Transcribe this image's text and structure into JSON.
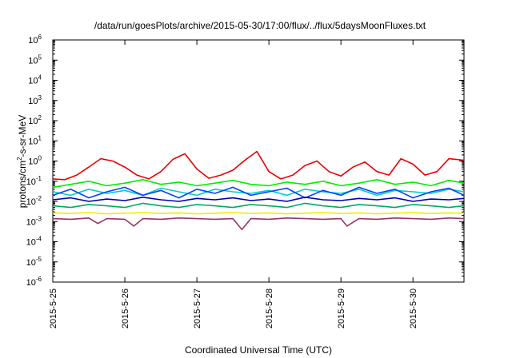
{
  "chart_data": {
    "type": "line",
    "title": "/data/run/goesPlots/archive/2015-05-30/17:00/flux/../flux/5daysMoonFluxes.txt",
    "xlabel": "Coordinated Universal Time (UTC)",
    "ylabel": {
      "before": "protons/cm",
      "sup": "2",
      "after": "-s-sr-MeV"
    },
    "y_scale": "log",
    "ylim": [
      1e-06,
      1000000.0
    ],
    "y_ticks": [
      {
        "base": "10",
        "exp": "-6",
        "value": 1e-06
      },
      {
        "base": "10",
        "exp": "-5",
        "value": 1e-05
      },
      {
        "base": "10",
        "exp": "-4",
        "value": 0.0001
      },
      {
        "base": "10",
        "exp": "-3",
        "value": 0.001
      },
      {
        "base": "10",
        "exp": "-2",
        "value": 0.01
      },
      {
        "base": "10",
        "exp": "-1",
        "value": 0.1
      },
      {
        "base": "10",
        "exp": "0",
        "value": 1
      },
      {
        "base": "10",
        "exp": "1",
        "value": 10
      },
      {
        "base": "10",
        "exp": "2",
        "value": 100
      },
      {
        "base": "10",
        "exp": "3",
        "value": 1000
      },
      {
        "base": "10",
        "exp": "4",
        "value": 10000
      },
      {
        "base": "10",
        "exp": "5",
        "value": 100000
      },
      {
        "base": "10",
        "exp": "6",
        "value": 1000000
      }
    ],
    "xlim": [
      "2015-05-25T00:00",
      "2015-05-30T17:00"
    ],
    "x_ticks": [
      {
        "label": "2015-5-25",
        "value": "2015-05-25T00:00"
      },
      {
        "label": "2015-5-26",
        "value": "2015-05-26T00:00"
      },
      {
        "label": "2015-5-27",
        "value": "2015-05-27T00:00"
      },
      {
        "label": "2015-5-28",
        "value": "2015-05-28T00:00"
      },
      {
        "label": "2015-5-29",
        "value": "2015-05-29T00:00"
      },
      {
        "label": "2015-5-30",
        "value": "2015-05-30T00:00"
      }
    ],
    "grid": false,
    "legend": "none",
    "series": [
      {
        "color": "#ee0000",
        "x": [
          "2015-05-25T00:00",
          "2015-05-25T04:00",
          "2015-05-25T08:00",
          "2015-05-25T12:00",
          "2015-05-25T16:00",
          "2015-05-25T20:00",
          "2015-05-26T00:00",
          "2015-05-26T04:00",
          "2015-05-26T08:00",
          "2015-05-26T12:00",
          "2015-05-26T16:00",
          "2015-05-26T20:00",
          "2015-05-27T00:00",
          "2015-05-27T04:00",
          "2015-05-27T08:00",
          "2015-05-27T12:00",
          "2015-05-27T16:00",
          "2015-05-27T20:00",
          "2015-05-28T00:00",
          "2015-05-28T04:00",
          "2015-05-28T08:00",
          "2015-05-28T12:00",
          "2015-05-28T16:00",
          "2015-05-28T20:00",
          "2015-05-29T00:00",
          "2015-05-29T04:00",
          "2015-05-29T08:00",
          "2015-05-29T12:00",
          "2015-05-29T16:00",
          "2015-05-29T20:00",
          "2015-05-30T00:00",
          "2015-05-30T04:00",
          "2015-05-30T08:00",
          "2015-05-30T12:00",
          "2015-05-30T17:00"
        ],
        "y": [
          0.13,
          0.12,
          0.2,
          0.5,
          1.3,
          1.0,
          0.5,
          0.2,
          0.13,
          0.3,
          1.2,
          2.3,
          0.4,
          0.14,
          0.2,
          0.35,
          1.1,
          3.0,
          0.3,
          0.13,
          0.2,
          0.6,
          1.0,
          0.3,
          0.18,
          0.5,
          0.9,
          0.3,
          0.2,
          1.3,
          0.7,
          0.2,
          0.3,
          1.3,
          1.1
        ]
      },
      {
        "color": "#00ee00",
        "x": [
          "2015-05-25T00:00",
          "2015-05-25T06:00",
          "2015-05-25T12:00",
          "2015-05-25T18:00",
          "2015-05-26T00:00",
          "2015-05-26T06:00",
          "2015-05-26T12:00",
          "2015-05-26T18:00",
          "2015-05-27T00:00",
          "2015-05-27T06:00",
          "2015-05-27T12:00",
          "2015-05-27T18:00",
          "2015-05-28T00:00",
          "2015-05-28T06:00",
          "2015-05-28T12:00",
          "2015-05-28T18:00",
          "2015-05-29T00:00",
          "2015-05-29T06:00",
          "2015-05-29T12:00",
          "2015-05-29T18:00",
          "2015-05-30T00:00",
          "2015-05-30T06:00",
          "2015-05-30T12:00",
          "2015-05-30T17:00"
        ],
        "y": [
          0.05,
          0.07,
          0.1,
          0.06,
          0.08,
          0.12,
          0.07,
          0.09,
          0.06,
          0.08,
          0.11,
          0.07,
          0.06,
          0.09,
          0.07,
          0.1,
          0.06,
          0.08,
          0.12,
          0.07,
          0.09,
          0.06,
          0.11,
          0.08
        ]
      },
      {
        "color": "#00cccc",
        "x": [
          "2015-05-25T00:00",
          "2015-05-25T06:00",
          "2015-05-25T12:00",
          "2015-05-25T18:00",
          "2015-05-26T00:00",
          "2015-05-26T06:00",
          "2015-05-26T12:00",
          "2015-05-26T18:00",
          "2015-05-27T00:00",
          "2015-05-27T06:00",
          "2015-05-27T12:00",
          "2015-05-27T18:00",
          "2015-05-28T00:00",
          "2015-05-28T06:00",
          "2015-05-28T12:00",
          "2015-05-28T18:00",
          "2015-05-29T00:00",
          "2015-05-29T06:00",
          "2015-05-29T12:00",
          "2015-05-29T18:00",
          "2015-05-30T00:00",
          "2015-05-30T06:00",
          "2015-05-30T12:00",
          "2015-05-30T17:00"
        ],
        "y": [
          0.03,
          0.02,
          0.04,
          0.025,
          0.035,
          0.02,
          0.045,
          0.03,
          0.02,
          0.04,
          0.03,
          0.025,
          0.035,
          0.02,
          0.04,
          0.03,
          0.025,
          0.04,
          0.02,
          0.035,
          0.03,
          0.025,
          0.04,
          0.03
        ]
      },
      {
        "color": "#0044ff",
        "x": [
          "2015-05-25T00:00",
          "2015-05-25T06:00",
          "2015-05-25T12:00",
          "2015-05-25T18:00",
          "2015-05-26T00:00",
          "2015-05-26T06:00",
          "2015-05-26T12:00",
          "2015-05-26T18:00",
          "2015-05-27T00:00",
          "2015-05-27T06:00",
          "2015-05-27T12:00",
          "2015-05-27T18:00",
          "2015-05-28T00:00",
          "2015-05-28T06:00",
          "2015-05-28T12:00",
          "2015-05-28T18:00",
          "2015-05-29T00:00",
          "2015-05-29T06:00",
          "2015-05-29T12:00",
          "2015-05-29T18:00",
          "2015-05-30T00:00",
          "2015-05-30T06:00",
          "2015-05-30T12:00",
          "2015-05-30T17:00"
        ],
        "y": [
          0.02,
          0.04,
          0.015,
          0.03,
          0.05,
          0.02,
          0.035,
          0.015,
          0.04,
          0.025,
          0.05,
          0.02,
          0.03,
          0.045,
          0.015,
          0.035,
          0.02,
          0.05,
          0.025,
          0.04,
          0.015,
          0.03,
          0.045,
          0.02
        ]
      },
      {
        "color": "#0000aa",
        "x": [
          "2015-05-25T00:00",
          "2015-05-25T06:00",
          "2015-05-25T12:00",
          "2015-05-25T18:00",
          "2015-05-26T00:00",
          "2015-05-26T06:00",
          "2015-05-26T12:00",
          "2015-05-26T18:00",
          "2015-05-27T00:00",
          "2015-05-27T06:00",
          "2015-05-27T12:00",
          "2015-05-27T18:00",
          "2015-05-28T00:00",
          "2015-05-28T06:00",
          "2015-05-28T12:00",
          "2015-05-28T18:00",
          "2015-05-29T00:00",
          "2015-05-29T06:00",
          "2015-05-29T12:00",
          "2015-05-29T18:00",
          "2015-05-30T00:00",
          "2015-05-30T06:00",
          "2015-05-30T12:00",
          "2015-05-30T17:00"
        ],
        "y": [
          0.012,
          0.015,
          0.01,
          0.013,
          0.011,
          0.016,
          0.012,
          0.01,
          0.014,
          0.012,
          0.015,
          0.011,
          0.013,
          0.01,
          0.016,
          0.012,
          0.011,
          0.014,
          0.012,
          0.015,
          0.01,
          0.013,
          0.012,
          0.014
        ]
      },
      {
        "color": "#00aa66",
        "x": [
          "2015-05-25T00:00",
          "2015-05-25T06:00",
          "2015-05-25T12:00",
          "2015-05-25T18:00",
          "2015-05-26T00:00",
          "2015-05-26T06:00",
          "2015-05-26T12:00",
          "2015-05-26T18:00",
          "2015-05-27T00:00",
          "2015-05-27T06:00",
          "2015-05-27T12:00",
          "2015-05-27T18:00",
          "2015-05-28T00:00",
          "2015-05-28T06:00",
          "2015-05-28T12:00",
          "2015-05-28T18:00",
          "2015-05-29T00:00",
          "2015-05-29T06:00",
          "2015-05-29T12:00",
          "2015-05-29T18:00",
          "2015-05-30T00:00",
          "2015-05-30T06:00",
          "2015-05-30T12:00",
          "2015-05-30T17:00"
        ],
        "y": [
          0.006,
          0.005,
          0.007,
          0.006,
          0.005,
          0.008,
          0.006,
          0.005,
          0.007,
          0.006,
          0.005,
          0.007,
          0.006,
          0.005,
          0.008,
          0.006,
          0.005,
          0.007,
          0.006,
          0.005,
          0.007,
          0.006,
          0.005,
          0.006
        ]
      },
      {
        "color": "#eeee00",
        "x": [
          "2015-05-25T00:00",
          "2015-05-25T06:00",
          "2015-05-25T12:00",
          "2015-05-25T18:00",
          "2015-05-26T00:00",
          "2015-05-26T06:00",
          "2015-05-26T12:00",
          "2015-05-26T18:00",
          "2015-05-27T00:00",
          "2015-05-27T06:00",
          "2015-05-27T12:00",
          "2015-05-27T18:00",
          "2015-05-28T00:00",
          "2015-05-28T06:00",
          "2015-05-28T12:00",
          "2015-05-28T18:00",
          "2015-05-29T00:00",
          "2015-05-29T06:00",
          "2015-05-29T12:00",
          "2015-05-29T18:00",
          "2015-05-30T00:00",
          "2015-05-30T06:00",
          "2015-05-30T12:00",
          "2015-05-30T17:00"
        ],
        "y": [
          0.0027,
          0.0025,
          0.0028,
          0.0024,
          0.0026,
          0.0028,
          0.0025,
          0.0027,
          0.0024,
          0.0026,
          0.0028,
          0.0025,
          0.0027,
          0.0024,
          0.0026,
          0.0028,
          0.0025,
          0.0027,
          0.0024,
          0.0026,
          0.0028,
          0.0025,
          0.0027,
          0.0026
        ]
      },
      {
        "color": "#993366",
        "x": [
          "2015-05-25T00:00",
          "2015-05-25T06:00",
          "2015-05-25T12:00",
          "2015-05-25T15:00",
          "2015-05-25T18:00",
          "2015-05-26T00:00",
          "2015-05-26T03:00",
          "2015-05-26T06:00",
          "2015-05-26T12:00",
          "2015-05-26T18:00",
          "2015-05-27T00:00",
          "2015-05-27T06:00",
          "2015-05-27T12:00",
          "2015-05-27T15:00",
          "2015-05-27T18:00",
          "2015-05-28T00:00",
          "2015-05-28T06:00",
          "2015-05-28T12:00",
          "2015-05-28T18:00",
          "2015-05-29T00:00",
          "2015-05-29T02:00",
          "2015-05-29T06:00",
          "2015-05-29T12:00",
          "2015-05-29T18:00",
          "2015-05-30T00:00",
          "2015-05-30T06:00",
          "2015-05-30T12:00",
          "2015-05-30T17:00"
        ],
        "y": [
          0.0014,
          0.0013,
          0.0015,
          0.0008,
          0.0014,
          0.0013,
          0.0006,
          0.0014,
          0.0013,
          0.0015,
          0.0014,
          0.0013,
          0.0014,
          0.0004,
          0.0014,
          0.0013,
          0.0015,
          0.0014,
          0.0013,
          0.0014,
          0.0006,
          0.0014,
          0.0013,
          0.0015,
          0.0014,
          0.0013,
          0.0015,
          0.0014
        ]
      }
    ]
  }
}
